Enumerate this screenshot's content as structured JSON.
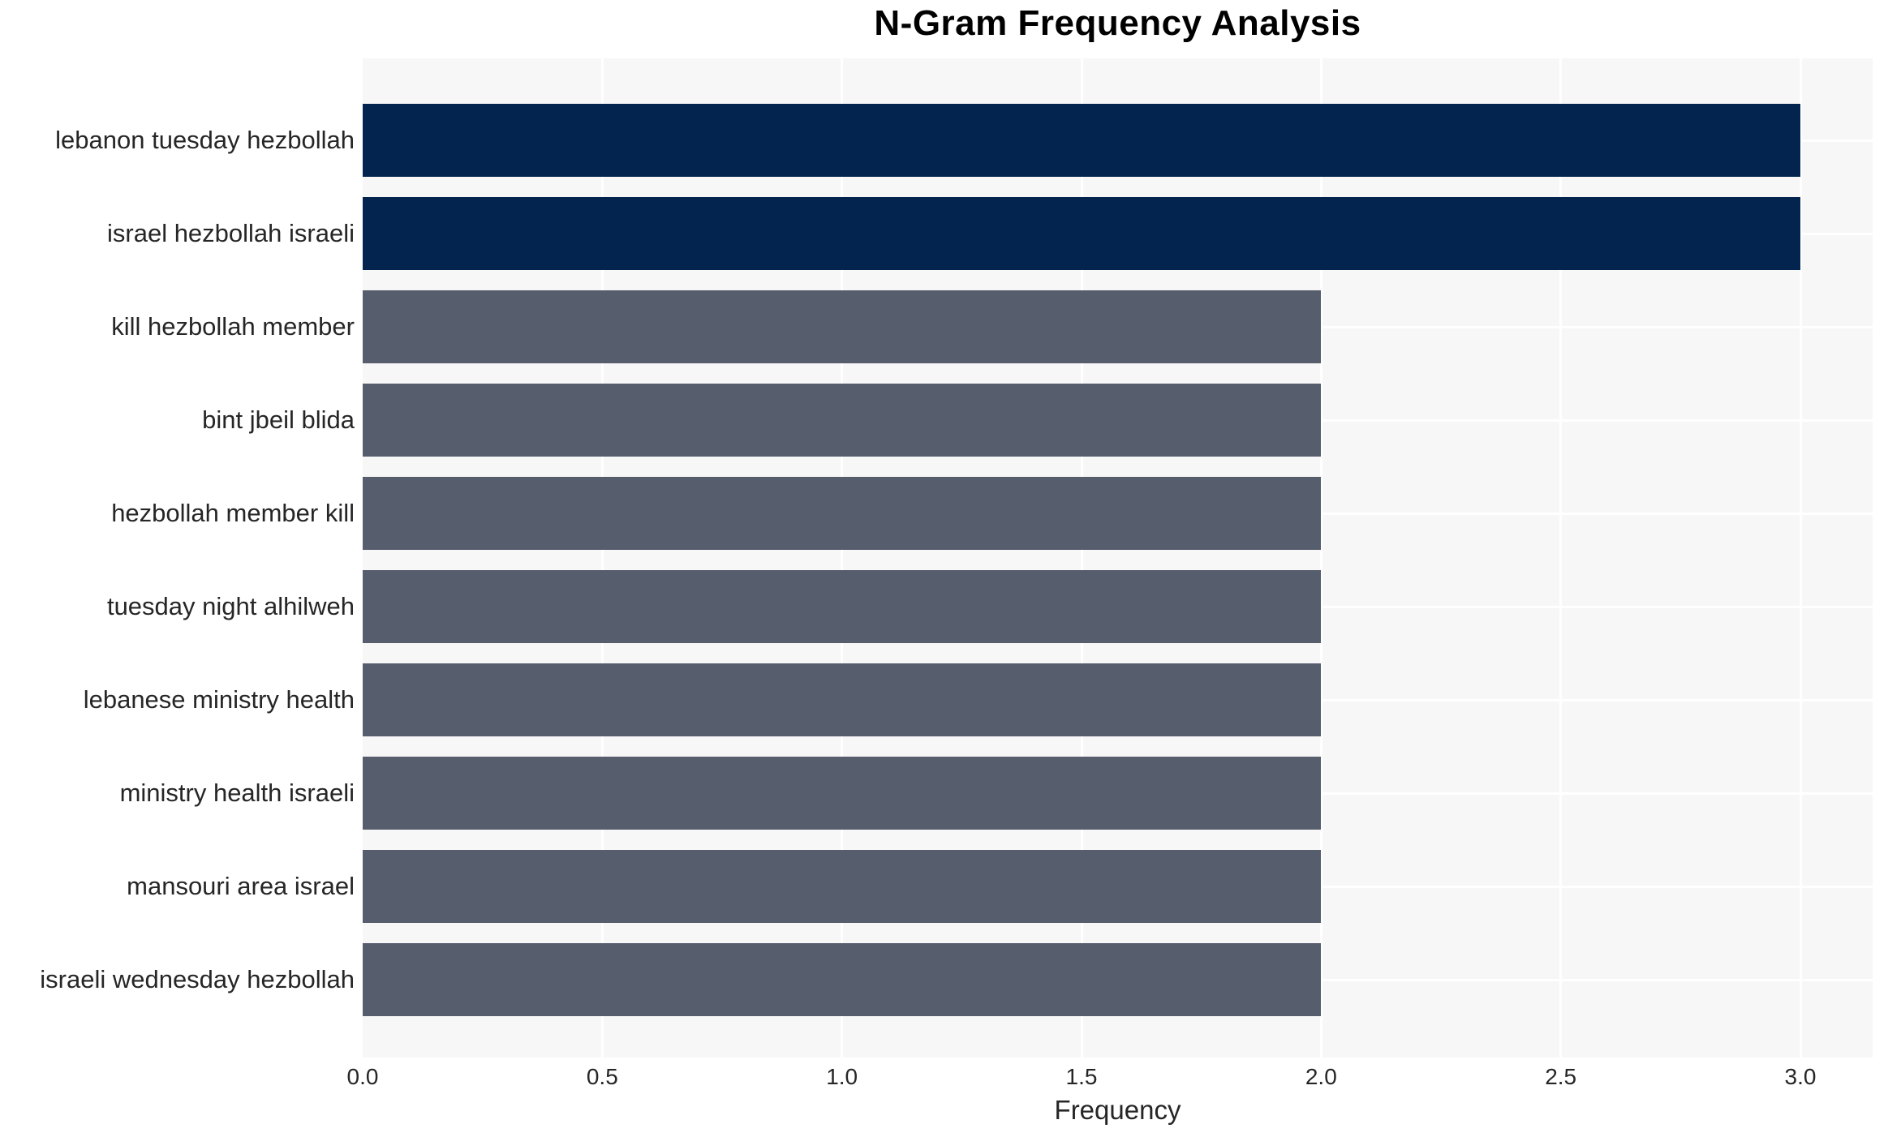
{
  "chart_data": {
    "type": "bar",
    "orientation": "horizontal",
    "title": "N-Gram Frequency Analysis",
    "xlabel": "Frequency",
    "ylabel": "",
    "categories": [
      "lebanon tuesday hezbollah",
      "israel hezbollah israeli",
      "kill hezbollah member",
      "bint jbeil blida",
      "hezbollah member kill",
      "tuesday night alhilweh",
      "lebanese ministry health",
      "ministry health israeli",
      "mansouri area israel",
      "israeli wednesday hezbollah"
    ],
    "values": [
      3,
      3,
      2,
      2,
      2,
      2,
      2,
      2,
      2,
      2
    ],
    "bar_colors": [
      "#03244F",
      "#03244F",
      "#565D6D",
      "#565D6D",
      "#565D6D",
      "#565D6D",
      "#565D6D",
      "#565D6D",
      "#565D6D",
      "#565D6D"
    ],
    "xlim": [
      0,
      3.15
    ],
    "xticks": [
      0,
      0.5,
      1,
      1.5,
      2,
      2.5,
      3
    ],
    "xtick_labels": [
      "0.0",
      "0.5",
      "1.0",
      "1.5",
      "2.0",
      "2.5",
      "3.0"
    ],
    "grid": "white vertical gridlines at x ticks and horizontal gridlines at category centers on light gray panel",
    "legend_position": "none"
  },
  "style": {
    "figure_bg": "#FFFFFF",
    "panel_bg": "#F7F7F7",
    "grid_color": "#FFFFFF",
    "title_color": "#000000",
    "tick_label_color": "#262626",
    "bar_color_high": "#03244F",
    "bar_color_normal": "#565D6D"
  }
}
